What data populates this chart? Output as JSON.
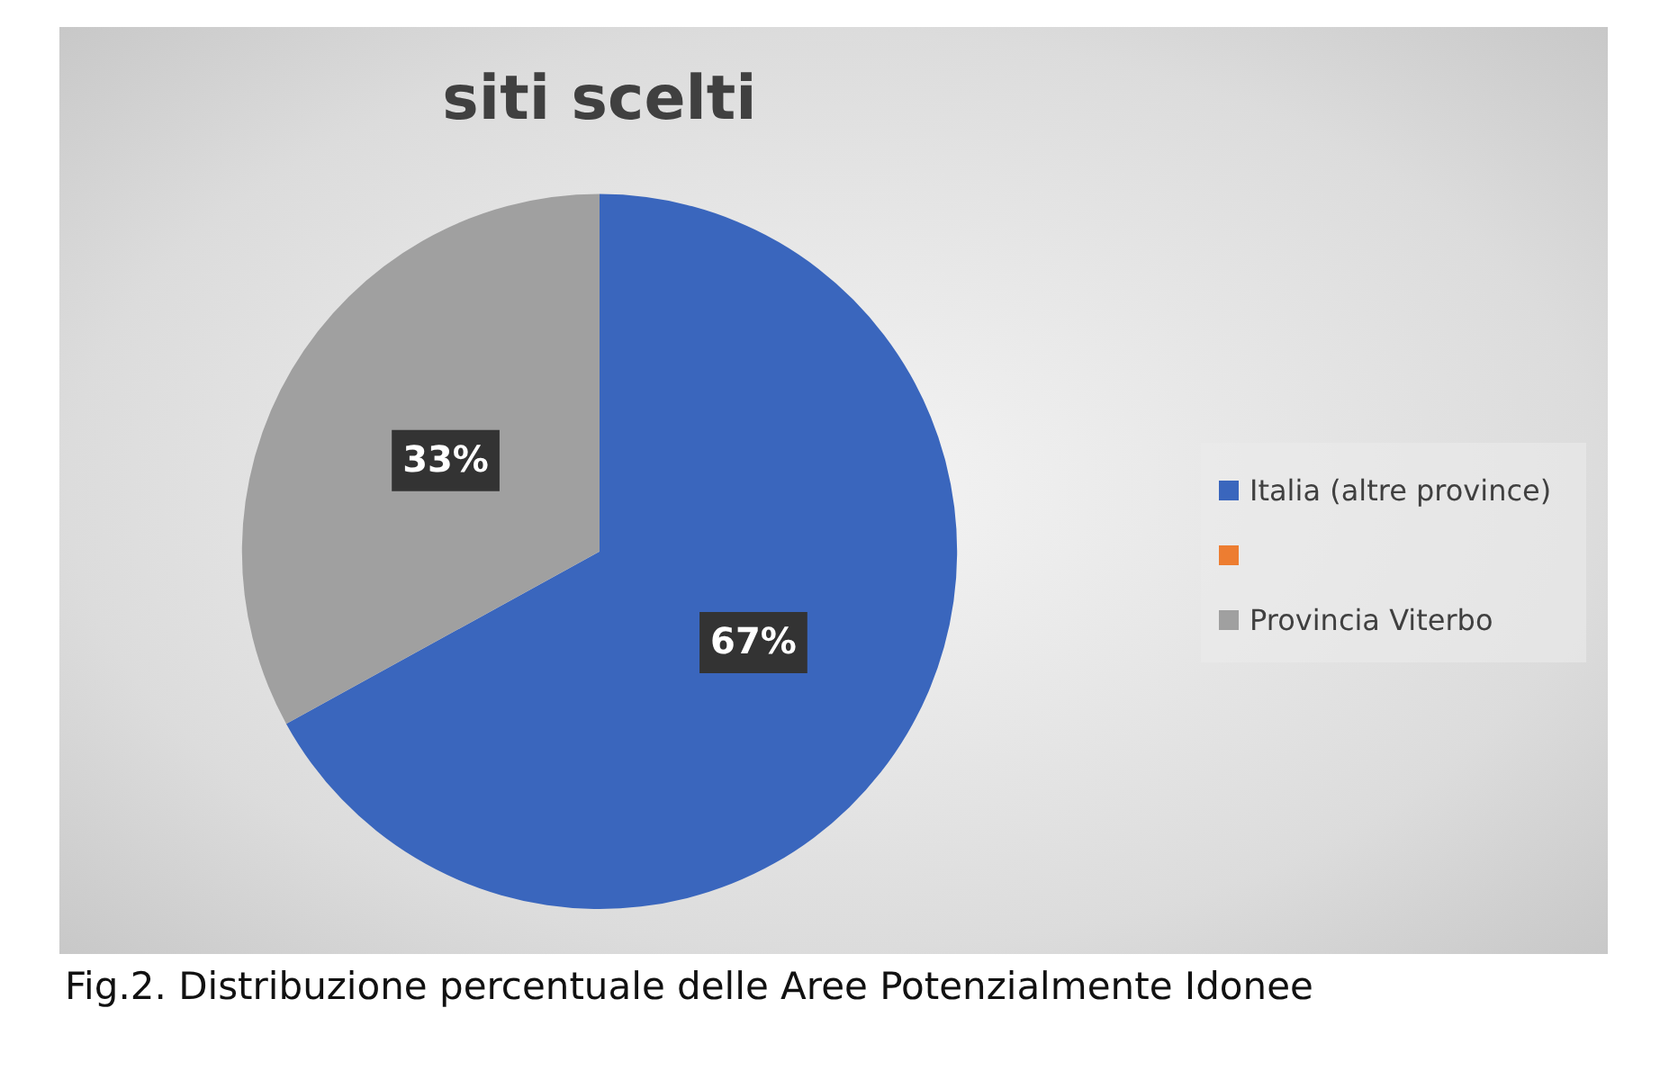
{
  "chart_data": {
    "type": "pie",
    "title": "siti scelti",
    "categories": [
      "Italia (altre province)",
      null,
      "Provincia Viterbo"
    ],
    "values": [
      67,
      0,
      33
    ],
    "colors": [
      "#3a66bd",
      "#ed7d31",
      "#a0a0a0"
    ],
    "value_labels": [
      "67%",
      null,
      "33%"
    ],
    "legend": "right",
    "annotations": [
      "Fig.2. Distribuzione percentuale delle Aree Potenzialmente Idonee"
    ]
  }
}
